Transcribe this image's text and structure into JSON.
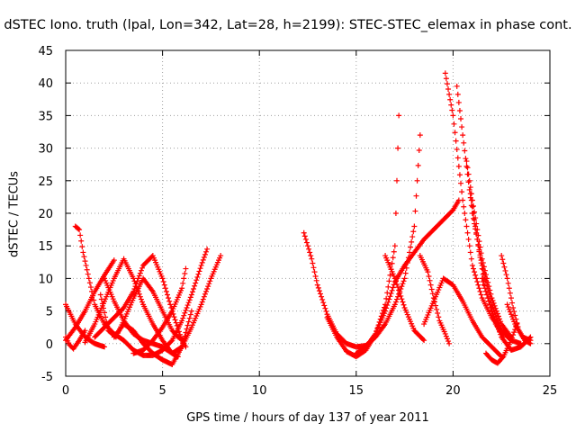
{
  "chart_data": {
    "type": "scatter",
    "title": "dSTEC Iono. truth (lpal, Lon=342, Lat=28, h=2199): STEC-STEC_elemax in phase cont.",
    "xlabel": "GPS time / hours of day 137 of year 2011",
    "ylabel": "dSTEC  / TECUs",
    "xlim": [
      0,
      25
    ],
    "ylim": [
      -5,
      45
    ],
    "x_ticks": [
      "0",
      "5",
      "10",
      "15",
      "20",
      "25"
    ],
    "y_ticks": [
      "-5",
      "0",
      "5",
      "10",
      "15",
      "20",
      "25",
      "30",
      "35",
      "40",
      "45"
    ],
    "grid": true,
    "marker": "+",
    "color": "#ff0000",
    "series": [
      {
        "x": [
          0.0,
          0.5,
          1.0,
          1.5,
          2.0,
          2.5
        ],
        "y": [
          0.5,
          2.5,
          5.0,
          8.0,
          10.5,
          12.8
        ]
      },
      {
        "x": [
          0.0,
          0.5,
          1.0,
          1.5,
          2.0
        ],
        "y": [
          6.0,
          3.0,
          1.0,
          0.0,
          -0.5
        ]
      },
      {
        "x": [
          0.0,
          0.2,
          0.4,
          0.7,
          1.0
        ],
        "y": [
          1.0,
          -0.2,
          -0.8,
          0.5,
          2.0
        ]
      },
      {
        "x": [
          0.5,
          0.7,
          0.9,
          1.2,
          1.5,
          2.0,
          2.5,
          3.0,
          3.5,
          4.0,
          4.5,
          5.0,
          5.5,
          6.0,
          6.5,
          7.0,
          7.3
        ],
        "y": [
          18.0,
          17.5,
          14.0,
          10.0,
          6.0,
          3.0,
          1.5,
          0.5,
          -1.0,
          -1.8,
          -1.8,
          -1.0,
          0.5,
          3.5,
          7.5,
          12.0,
          14.5
        ]
      },
      {
        "x": [
          1.0,
          1.5,
          2.0,
          2.5,
          3.0,
          3.5,
          4.0,
          4.5,
          5.0,
          5.5,
          6.0,
          6.5,
          7.0,
          7.5,
          8.0
        ],
        "y": [
          0.2,
          3.0,
          6.5,
          10.0,
          13.0,
          10.0,
          6.0,
          3.0,
          0.5,
          -1.5,
          -0.5,
          2.5,
          6.0,
          10.0,
          13.5
        ]
      },
      {
        "x": [
          1.8,
          2.2,
          2.6,
          3.0,
          3.5,
          4.0,
          4.5,
          5.0,
          5.5,
          5.8,
          6.1
        ],
        "y": [
          7.5,
          2.0,
          1.0,
          3.5,
          7.0,
          10.0,
          8.0,
          5.0,
          2.0,
          1.0,
          0.5
        ]
      },
      {
        "x": [
          2.0,
          2.5,
          3.0,
          3.5,
          4.0,
          4.5,
          5.0,
          5.5,
          5.8
        ],
        "y": [
          10.0,
          6.5,
          3.5,
          1.5,
          0.5,
          0.0,
          -0.5,
          -1.5,
          -2.0
        ]
      },
      {
        "x": [
          1.5,
          2.0,
          2.5,
          3.0,
          3.5,
          4.0,
          4.5,
          5.0,
          5.5,
          6.0,
          6.2
        ],
        "y": [
          1.0,
          2.5,
          4.0,
          5.5,
          8.0,
          12.0,
          13.5,
          10.0,
          5.0,
          0.5,
          -0.5
        ]
      },
      {
        "x": [
          2.5,
          3.0,
          3.5,
          4.0,
          4.5,
          5.0,
          5.5,
          6.0,
          6.5
        ],
        "y": [
          1.0,
          3.0,
          2.0,
          0.0,
          -1.5,
          -2.5,
          -3.2,
          -0.5,
          5.0
        ]
      },
      {
        "x": [
          3.5,
          4.0,
          4.5,
          5.0,
          5.5,
          6.0,
          6.2
        ],
        "y": [
          -1.5,
          -1.0,
          0.5,
          2.5,
          5.0,
          8.5,
          11.5
        ]
      },
      {
        "x": [
          12.3,
          12.7,
          13.0,
          13.5,
          14.0,
          14.5,
          15.0,
          15.5,
          16.0,
          16.5,
          17.0,
          17.5,
          18.0,
          18.3
        ],
        "y": [
          17.0,
          13.0,
          9.0,
          4.5,
          1.5,
          0.0,
          -0.5,
          -0.3,
          1.0,
          3.0,
          6.0,
          10.0,
          18.0,
          32.0
        ]
      },
      {
        "x": [
          13.5,
          14.0,
          14.5,
          15.0,
          15.5,
          16.0,
          16.5,
          17.0,
          17.2
        ],
        "y": [
          4.0,
          1.0,
          -1.2,
          -2.0,
          -1.0,
          1.5,
          6.0,
          15.0,
          35.0
        ]
      },
      {
        "x": [
          15.0,
          15.5,
          16.0,
          16.5,
          17.0,
          17.5,
          18.0,
          18.5,
          19.0,
          19.5,
          20.0,
          20.3
        ],
        "y": [
          -1.5,
          -0.5,
          1.5,
          5.0,
          9.5,
          12.0,
          14.0,
          16.0,
          17.5,
          19.0,
          20.5,
          22.0
        ]
      },
      {
        "x": [
          16.5,
          17.0,
          17.5,
          18.0,
          18.5
        ],
        "y": [
          13.5,
          10.0,
          5.5,
          2.0,
          0.5
        ]
      },
      {
        "x": [
          18.3,
          18.7,
          19.0,
          19.3,
          19.6,
          19.8
        ],
        "y": [
          13.5,
          11.0,
          7.0,
          3.5,
          1.5,
          0.0
        ]
      },
      {
        "x": [
          18.5,
          19.0,
          19.5,
          20.0,
          20.5,
          21.0,
          21.5,
          22.0,
          22.5
        ],
        "y": [
          3.0,
          6.5,
          10.0,
          9.0,
          6.5,
          3.5,
          1.0,
          -0.5,
          -2.0
        ]
      },
      {
        "x": [
          19.6,
          20.0,
          20.5,
          21.0,
          21.5,
          22.0,
          22.5,
          23.0,
          23.5
        ],
        "y": [
          41.5,
          35.0,
          22.0,
          12.0,
          7.0,
          4.0,
          2.0,
          0.5,
          0.0
        ]
      },
      {
        "x": [
          20.2,
          20.5,
          21.0,
          21.5,
          22.0,
          22.5,
          23.0
        ],
        "y": [
          39.5,
          32.0,
          20.0,
          12.0,
          6.0,
          2.0,
          0.5
        ]
      },
      {
        "x": [
          20.7,
          21.0,
          21.5,
          22.0,
          22.5,
          23.0
        ],
        "y": [
          28.0,
          22.0,
          13.0,
          7.0,
          3.0,
          1.0
        ]
      },
      {
        "x": [
          20.9,
          21.3,
          21.7,
          22.2,
          22.6
        ],
        "y": [
          23.0,
          15.0,
          8.0,
          3.0,
          1.0
        ]
      },
      {
        "x": [
          21.5,
          22.0,
          22.5,
          23.0,
          23.5,
          24.0
        ],
        "y": [
          10.0,
          5.0,
          1.0,
          -1.0,
          -0.5,
          1.0
        ]
      },
      {
        "x": [
          22.5,
          22.8,
          23.1,
          23.4,
          23.7,
          24.0
        ],
        "y": [
          13.5,
          10.0,
          5.5,
          2.0,
          0.5,
          0.0
        ]
      },
      {
        "x": [
          21.7,
          22.0,
          22.3,
          22.6,
          23.0,
          23.3
        ],
        "y": [
          -1.5,
          -2.5,
          -3.0,
          -2.0,
          0.5,
          3.0
        ]
      },
      {
        "x": [
          22.8,
          23.2,
          23.6,
          24.0
        ],
        "y": [
          6.0,
          3.0,
          1.0,
          0.5
        ]
      }
    ]
  }
}
